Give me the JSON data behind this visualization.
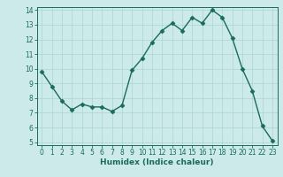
{
  "x": [
    0,
    1,
    2,
    3,
    4,
    5,
    6,
    7,
    8,
    9,
    10,
    11,
    12,
    13,
    14,
    15,
    16,
    17,
    18,
    19,
    20,
    21,
    22,
    23
  ],
  "y": [
    9.8,
    8.8,
    7.8,
    7.2,
    7.6,
    7.4,
    7.4,
    7.1,
    7.5,
    9.9,
    10.7,
    11.8,
    12.6,
    13.1,
    12.6,
    13.5,
    13.1,
    14.0,
    13.5,
    12.1,
    10.0,
    8.5,
    6.1,
    5.1
  ],
  "line_color": "#1a6b5a",
  "marker_color": "#1a6b5a",
  "bg_color": "#cceaea",
  "grid_color": "#aad4d4",
  "xlabel": "Humidex (Indice chaleur)",
  "xlim": [
    -0.5,
    23.5
  ],
  "ylim": [
    4.8,
    14.2
  ],
  "yticks": [
    5,
    6,
    7,
    8,
    9,
    10,
    11,
    12,
    13,
    14
  ],
  "xticks": [
    0,
    1,
    2,
    3,
    4,
    5,
    6,
    7,
    8,
    9,
    10,
    11,
    12,
    13,
    14,
    15,
    16,
    17,
    18,
    19,
    20,
    21,
    22,
    23
  ],
  "tick_fontsize": 5.5,
  "xlabel_fontsize": 6.5,
  "line_width": 1.0,
  "marker_size": 2.5
}
